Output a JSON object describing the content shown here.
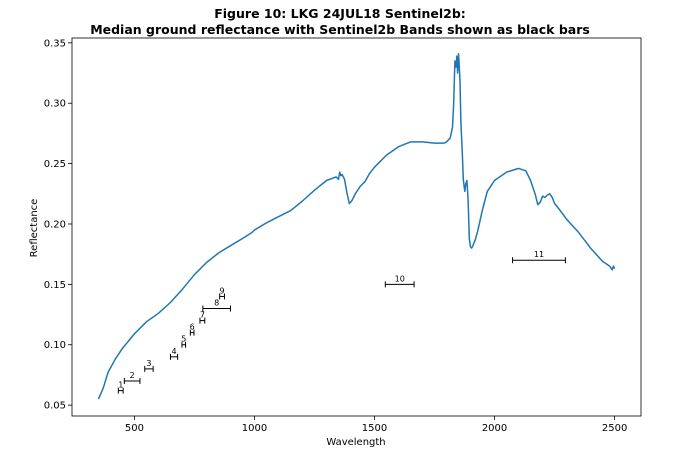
{
  "chart_data": {
    "type": "line",
    "title": "Figure 10: LKG 24JUL18  Sentinel2b:",
    "subtitle": "Median ground reflectance with Sentinel2b Bands shown as black bars",
    "xlabel": "Wavelength",
    "ylabel": "Reflectance",
    "xlim": [
      240,
      2610
    ],
    "ylim": [
      0.041,
      0.354
    ],
    "xticks": [
      500,
      1000,
      1500,
      2000,
      2500
    ],
    "yticks": [
      0.05,
      0.1,
      0.15,
      0.2,
      0.25,
      0.3,
      0.35
    ],
    "ytick_labels": [
      "0.05",
      "0.10",
      "0.15",
      "0.20",
      "0.25",
      "0.30",
      "0.35"
    ],
    "line_color": "#1f77b4",
    "bar_color": "#000000",
    "series": [
      {
        "x": [
          350,
          370,
          390,
          420,
          450,
          500,
          550,
          600,
          650,
          700,
          750,
          800,
          850,
          900,
          950,
          990,
          1000,
          1050,
          1100,
          1150,
          1200,
          1250,
          1300,
          1340,
          1350,
          1355,
          1360,
          1365,
          1375,
          1385,
          1395,
          1405,
          1420,
          1440,
          1460,
          1480,
          1500,
          1550,
          1600,
          1650,
          1700,
          1750,
          1790,
          1800,
          1815,
          1825,
          1830,
          1835,
          1840,
          1843,
          1846,
          1850,
          1853,
          1856,
          1860,
          1866,
          1870,
          1876,
          1880,
          1885,
          1890,
          1895,
          1900,
          1905,
          1910,
          1920,
          1930,
          1950,
          1970,
          2000,
          2050,
          2100,
          2130,
          2150,
          2160,
          2170,
          2180,
          2190,
          2200,
          2210,
          2220,
          2230,
          2240,
          2250,
          2270,
          2300,
          2350,
          2400,
          2450,
          2480,
          2490,
          2495,
          2500
        ],
        "y": [
          0.055,
          0.064,
          0.077,
          0.088,
          0.097,
          0.109,
          0.119,
          0.126,
          0.135,
          0.146,
          0.158,
          0.168,
          0.176,
          0.182,
          0.188,
          0.193,
          0.195,
          0.201,
          0.206,
          0.211,
          0.219,
          0.228,
          0.236,
          0.239,
          0.237,
          0.243,
          0.24,
          0.241,
          0.237,
          0.226,
          0.217,
          0.219,
          0.225,
          0.231,
          0.235,
          0.242,
          0.247,
          0.257,
          0.264,
          0.268,
          0.268,
          0.267,
          0.267,
          0.268,
          0.271,
          0.28,
          0.3,
          0.335,
          0.33,
          0.339,
          0.325,
          0.341,
          0.33,
          0.318,
          0.284,
          0.257,
          0.237,
          0.227,
          0.233,
          0.236,
          0.22,
          0.188,
          0.181,
          0.18,
          0.182,
          0.187,
          0.194,
          0.212,
          0.227,
          0.236,
          0.243,
          0.246,
          0.244,
          0.236,
          0.23,
          0.224,
          0.216,
          0.218,
          0.223,
          0.222,
          0.224,
          0.225,
          0.222,
          0.217,
          0.212,
          0.204,
          0.193,
          0.18,
          0.169,
          0.165,
          0.162,
          0.165,
          0.163
        ]
      }
    ],
    "bands": [
      {
        "label": "1",
        "start": 433,
        "end": 453,
        "value": 0.062
      },
      {
        "label": "2",
        "start": 458,
        "end": 523,
        "value": 0.07
      },
      {
        "label": "3",
        "start": 543,
        "end": 578,
        "value": 0.08
      },
      {
        "label": "4",
        "start": 650,
        "end": 680,
        "value": 0.09
      },
      {
        "label": "5",
        "start": 698,
        "end": 713,
        "value": 0.1
      },
      {
        "label": "6",
        "start": 733,
        "end": 748,
        "value": 0.11
      },
      {
        "label": "7",
        "start": 773,
        "end": 793,
        "value": 0.12
      },
      {
        "label": "8",
        "start": 785,
        "end": 900,
        "value": 0.13
      },
      {
        "label": "9",
        "start": 855,
        "end": 875,
        "value": 0.14
      },
      {
        "label": "10",
        "start": 1545,
        "end": 1665,
        "value": 0.15
      },
      {
        "label": "11",
        "start": 2075,
        "end": 2295,
        "value": 0.17
      }
    ]
  }
}
